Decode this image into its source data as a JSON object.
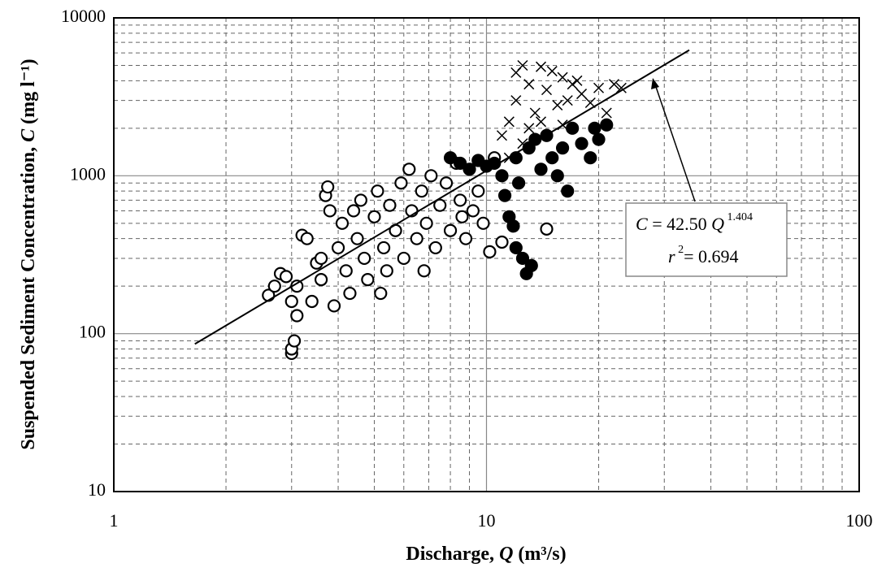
{
  "chart_data": {
    "type": "scatter",
    "x_label": [
      "Discharge, ",
      "Q",
      " (m³/s)"
    ],
    "y_label": [
      "Suspended Sediment Concentration, ",
      "C",
      " (mg l⁻¹)"
    ],
    "xlim": [
      1,
      100
    ],
    "ylim": [
      10,
      10000
    ],
    "xticks": [
      1,
      10,
      100
    ],
    "yticks": [
      10,
      100,
      1000,
      10000
    ],
    "log_x": true,
    "log_y": true,
    "grid": true,
    "minor_grid": true,
    "series": [
      {
        "marker": "open-circle",
        "color": "#000000",
        "x": [
          2.6,
          2.7,
          2.8,
          2.9,
          3.0,
          3.0,
          3.0,
          3.05,
          3.1,
          3.1,
          3.2,
          3.3,
          3.4,
          3.5,
          3.6,
          3.7,
          3.75,
          3.8,
          3.9,
          4.0,
          4.1,
          4.2,
          4.3,
          4.5,
          4.6,
          4.7,
          4.8,
          5.0,
          5.1,
          5.3,
          5.4,
          5.5,
          5.7,
          5.9,
          6.0,
          6.2,
          6.3,
          6.5,
          6.7,
          6.9,
          7.1,
          7.3,
          7.5,
          7.8,
          8.0,
          8.3,
          8.5,
          8.8,
          9.2,
          9.5,
          9.8,
          10.2,
          10.5,
          11,
          14.5,
          3.6,
          4.4,
          5.2,
          6.8,
          8.6
        ],
        "values": [
          175,
          200,
          240,
          230,
          160,
          75,
          80,
          90,
          130,
          200,
          420,
          400,
          160,
          280,
          220,
          750,
          850,
          600,
          150,
          350,
          500,
          250,
          180,
          400,
          700,
          300,
          220,
          550,
          800,
          350,
          250,
          650,
          450,
          900,
          300,
          1100,
          600,
          400,
          800,
          500,
          1000,
          350,
          650,
          900,
          450,
          1200,
          700,
          400,
          600,
          800,
          500,
          330,
          1300,
          380,
          460,
          300,
          600,
          180,
          250,
          550
        ]
      },
      {
        "marker": "filled-circle",
        "color": "#000000",
        "x": [
          8,
          8.5,
          9,
          9.5,
          10,
          10.5,
          11,
          11.2,
          11.5,
          11.8,
          12,
          12,
          12.5,
          12.8,
          13.2,
          13,
          14,
          14.5,
          15,
          15.5,
          16,
          16.5,
          17,
          18,
          19,
          19.5,
          20,
          21,
          12.2,
          13.5
        ],
        "values": [
          1300,
          1200,
          1100,
          1250,
          1150,
          1200,
          1000,
          750,
          550,
          480,
          1300,
          350,
          300,
          240,
          270,
          1500,
          1100,
          1800,
          1300,
          1000,
          1500,
          800,
          2000,
          1600,
          1300,
          2000,
          1700,
          2100,
          900,
          1700
        ]
      },
      {
        "marker": "cross",
        "color": "#000000",
        "x": [
          11,
          11.5,
          12,
          12,
          12.5,
          13,
          13.5,
          14,
          14.5,
          15,
          15.5,
          16,
          16.5,
          17,
          17.5,
          18,
          19,
          20,
          21,
          22,
          23,
          13,
          11.5,
          14,
          16,
          12.5
        ],
        "values": [
          1800,
          2200,
          3000,
          4500,
          5000,
          3800,
          2500,
          4900,
          3500,
          4600,
          2800,
          4200,
          3000,
          3800,
          4000,
          3300,
          2900,
          3600,
          2500,
          3800,
          3600,
          2000,
          1300,
          2200,
          2100,
          1600
        ]
      }
    ],
    "fit": {
      "x": [
        1.65,
        35
      ],
      "values": [
        86,
        6250
      ],
      "color": "#000000"
    },
    "annotation": {
      "equation": [
        "C",
        " = 42.50 ",
        "Q",
        " 1.404"
      ],
      "r2": [
        "r",
        " 2",
        "= 0.694"
      ]
    }
  }
}
